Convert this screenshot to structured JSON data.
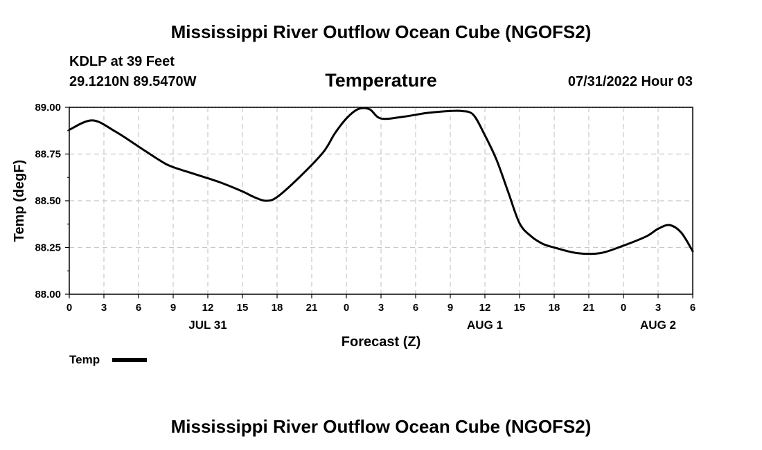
{
  "page": {
    "title": "Mississippi River Outflow Ocean Cube (NGOFS2)",
    "footer_title": "Mississippi River Outflow Ocean Cube (NGOFS2)"
  },
  "station": {
    "name": "KDLP at 39 Feet",
    "coords": "29.1210N  89.5470W"
  },
  "run_time": "07/31/2022 Hour 03",
  "chart_data": {
    "type": "line",
    "title": "Temperature",
    "xlabel": "Forecast (Z)",
    "ylabel": "Temp (degF)",
    "x_unit": "forecast hour from 07/31 00Z",
    "xlim": [
      0,
      54
    ],
    "ylim": [
      88.0,
      89.0
    ],
    "y_ticks": [
      "88.00",
      "88.25",
      "88.50",
      "88.75",
      "89.00"
    ],
    "x_ticks": [
      "0",
      "3",
      "6",
      "9",
      "12",
      "15",
      "18",
      "21",
      "0",
      "3",
      "6",
      "9",
      "12",
      "15",
      "18",
      "21",
      "0",
      "3",
      "6"
    ],
    "date_labels": [
      {
        "text": "JUL 31",
        "hour": 12
      },
      {
        "text": "AUG 1",
        "hour": 36
      },
      {
        "text": "AUG 2",
        "hour": 51
      }
    ],
    "grid": true,
    "legend": {
      "position": "bottom-left",
      "entries": [
        "Temp"
      ]
    },
    "series": [
      {
        "name": "Temp",
        "color": "#000000",
        "x": [
          0,
          2,
          4,
          6,
          8,
          9,
          11,
          13,
          15,
          16,
          17,
          18,
          20,
          22,
          23,
          24,
          25,
          26,
          27,
          29,
          31,
          33,
          34,
          35,
          36,
          37,
          38,
          39,
          40,
          41,
          42,
          44,
          46,
          48,
          50,
          51,
          52,
          53,
          54
        ],
        "y": [
          88.88,
          88.93,
          88.87,
          88.79,
          88.71,
          88.68,
          88.64,
          88.6,
          88.55,
          88.52,
          88.5,
          88.52,
          88.63,
          88.76,
          88.86,
          88.94,
          88.99,
          88.99,
          88.94,
          88.95,
          88.97,
          88.98,
          88.98,
          88.96,
          88.85,
          88.72,
          88.55,
          88.38,
          88.31,
          88.27,
          88.25,
          88.22,
          88.22,
          88.26,
          88.31,
          88.35,
          88.37,
          88.33,
          88.23
        ]
      }
    ]
  }
}
